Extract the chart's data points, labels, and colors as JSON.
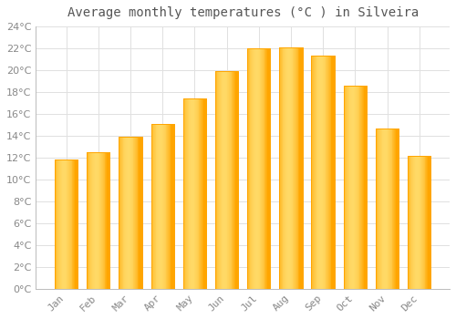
{
  "title": "Average monthly temperatures (°C ) in Silveira",
  "months": [
    "Jan",
    "Feb",
    "Mar",
    "Apr",
    "May",
    "Jun",
    "Jul",
    "Aug",
    "Sep",
    "Oct",
    "Nov",
    "Dec"
  ],
  "values": [
    11.8,
    12.5,
    13.9,
    15.1,
    17.4,
    19.9,
    22.0,
    22.1,
    21.3,
    18.6,
    14.7,
    12.2
  ],
  "bar_color_center": "#FFD966",
  "bar_color_edge": "#FFA500",
  "background_color": "#FFFFFF",
  "grid_color": "#E0E0E0",
  "text_color": "#888888",
  "ylim": [
    0,
    24
  ],
  "ytick_step": 2,
  "title_fontsize": 10,
  "tick_fontsize": 8
}
